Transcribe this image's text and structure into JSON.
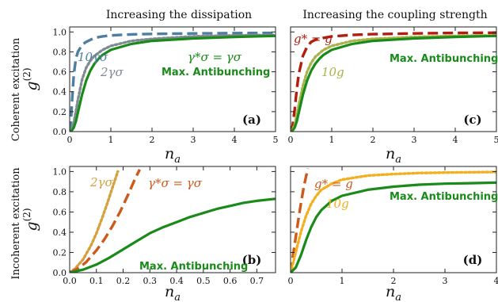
{
  "column_titles": [
    "Increasing the dissipation",
    "Increasing the coupling strength"
  ],
  "row_titles": [
    "Coherent excitation",
    "Incoherent excitation"
  ],
  "chart_data": [
    {
      "id": "a",
      "type": "line",
      "panel_label": "(a)",
      "xlabel": "n_a",
      "ylabel": "g^(2)",
      "xlim": [
        0,
        5
      ],
      "ylim": [
        0,
        1.05
      ],
      "xticks": [
        0,
        1,
        2,
        3,
        4,
        5
      ],
      "xtick_labels": [
        "0",
        "1",
        "2",
        "3",
        "4",
        "5"
      ],
      "yticks": [
        0,
        0.2,
        0.4,
        0.6,
        0.8,
        1.0
      ],
      "ytick_labels": [
        "0.0",
        "0.2",
        "0.4",
        "0.6",
        "0.8",
        "1.0"
      ],
      "series": [
        {
          "name": "10γσ",
          "color": "#4f7fa0",
          "dash": "long",
          "x": [
            0,
            0.03,
            0.06,
            0.1,
            0.15,
            0.2,
            0.3,
            0.4,
            0.6,
            0.8,
            1,
            1.5,
            2,
            3,
            4,
            5
          ],
          "y": [
            0,
            0.1,
            0.32,
            0.57,
            0.73,
            0.8,
            0.87,
            0.9,
            0.94,
            0.955,
            0.965,
            0.975,
            0.98,
            0.985,
            0.988,
            0.99
          ]
        },
        {
          "name": "2γσ",
          "color": "#7f8b91",
          "dash": "dot",
          "x": [
            0,
            0.05,
            0.1,
            0.15,
            0.2,
            0.3,
            0.4,
            0.5,
            0.6,
            0.8,
            1,
            1.5,
            2,
            3,
            4,
            5
          ],
          "y": [
            0,
            0.03,
            0.09,
            0.2,
            0.32,
            0.52,
            0.64,
            0.71,
            0.76,
            0.82,
            0.86,
            0.91,
            0.93,
            0.955,
            0.965,
            0.97
          ]
        },
        {
          "name": "Max. Antibunching",
          "color": "#1a8a1a",
          "dash": "solid",
          "x": [
            0,
            0.05,
            0.1,
            0.15,
            0.2,
            0.3,
            0.4,
            0.5,
            0.6,
            0.7,
            0.8,
            1,
            1.5,
            2,
            3,
            4,
            5
          ],
          "y": [
            0,
            0.01,
            0.04,
            0.1,
            0.19,
            0.37,
            0.51,
            0.61,
            0.68,
            0.73,
            0.77,
            0.82,
            0.88,
            0.91,
            0.935,
            0.95,
            0.96
          ]
        }
      ],
      "annotations": [
        {
          "text": "10γσ",
          "color": "#4f7fa0"
        },
        {
          "text": "2γσ",
          "color": "#7f8b91"
        },
        {
          "text": "γ*σ = γσ",
          "color": "#1a8a1a"
        },
        {
          "text": "Max. Antibunching",
          "color": "#1a8a1a"
        }
      ]
    },
    {
      "id": "c",
      "type": "line",
      "panel_label": "(c)",
      "xlabel": "n_a",
      "ylabel": "",
      "xlim": [
        0,
        5
      ],
      "ylim": [
        0,
        1.05
      ],
      "xticks": [
        0,
        1,
        2,
        3,
        4,
        5
      ],
      "xtick_labels": [
        "0",
        "1",
        "2",
        "3",
        "4",
        "5"
      ],
      "yticks": [
        0,
        0.2,
        0.4,
        0.6,
        0.8,
        1.0
      ],
      "ytick_labels": [
        "",
        "",
        "",
        "",
        "",
        ""
      ],
      "series": [
        {
          "name": "g* = g",
          "color": "#b01e10",
          "dash": "long",
          "x": [
            0,
            0.05,
            0.1,
            0.15,
            0.2,
            0.3,
            0.4,
            0.5,
            0.6,
            0.8,
            1,
            1.5,
            2,
            3,
            4,
            5
          ],
          "y": [
            0,
            0.06,
            0.22,
            0.42,
            0.58,
            0.76,
            0.85,
            0.9,
            0.92,
            0.94,
            0.955,
            0.97,
            0.978,
            0.985,
            0.99,
            0.992
          ]
        },
        {
          "name": "10g",
          "color": "#a8b34a",
          "dash": "dot",
          "x": [
            0,
            0.05,
            0.1,
            0.15,
            0.2,
            0.3,
            0.4,
            0.5,
            0.6,
            0.8,
            1,
            1.5,
            2,
            3,
            4,
            5
          ],
          "y": [
            0,
            0.02,
            0.07,
            0.16,
            0.27,
            0.46,
            0.6,
            0.69,
            0.75,
            0.82,
            0.86,
            0.91,
            0.93,
            0.95,
            0.96,
            0.965
          ]
        },
        {
          "name": "Max. Antibunching",
          "color": "#1a8a1a",
          "dash": "solid",
          "x": [
            0,
            0.05,
            0.1,
            0.15,
            0.2,
            0.3,
            0.4,
            0.5,
            0.6,
            0.7,
            0.8,
            1,
            1.5,
            2,
            3,
            4,
            5
          ],
          "y": [
            0,
            0.01,
            0.04,
            0.1,
            0.19,
            0.37,
            0.51,
            0.61,
            0.68,
            0.73,
            0.77,
            0.82,
            0.88,
            0.91,
            0.935,
            0.95,
            0.96
          ]
        }
      ],
      "annotations": [
        {
          "text": "g* = g",
          "color": "#b01e10"
        },
        {
          "text": "10g",
          "color": "#a8b34a"
        },
        {
          "text": "Max. Antibunching",
          "color": "#1a8a1a"
        }
      ]
    },
    {
      "id": "b",
      "type": "line",
      "panel_label": "(b)",
      "xlabel": "n_a",
      "ylabel": "g^(2)",
      "xlim": [
        0,
        0.77
      ],
      "ylim": [
        0,
        1.05
      ],
      "xticks": [
        0,
        0.1,
        0.2,
        0.3,
        0.4,
        0.5,
        0.6,
        0.7
      ],
      "xtick_labels": [
        "0.0",
        "0.1",
        "0.2",
        "0.3",
        "0.4",
        "0.5",
        "0.6",
        "0.7"
      ],
      "yticks": [
        0,
        0.2,
        0.4,
        0.6,
        0.8,
        1.0
      ],
      "ytick_labels": [
        "0.0",
        "0.2",
        "0.4",
        "0.6",
        "0.8",
        "1.0"
      ],
      "series": [
        {
          "name": "2γσ",
          "color": "#d4a040",
          "dash": "dot",
          "x": [
            0,
            0.02,
            0.05,
            0.08,
            0.1,
            0.12,
            0.14,
            0.16,
            0.18
          ],
          "y": [
            0,
            0.04,
            0.13,
            0.27,
            0.39,
            0.53,
            0.68,
            0.84,
            1.0
          ]
        },
        {
          "name": "γ*σ = γσ",
          "color": "#cc5a1c",
          "dash": "long",
          "x": [
            0,
            0.03,
            0.06,
            0.1,
            0.13,
            0.16,
            0.19,
            0.22,
            0.245,
            0.262
          ],
          "y": [
            0,
            0.04,
            0.1,
            0.22,
            0.33,
            0.46,
            0.61,
            0.78,
            0.93,
            1.02
          ]
        },
        {
          "name": "Max. Antibunching",
          "color": "#1a8a1a",
          "dash": "solid",
          "x": [
            0,
            0.05,
            0.1,
            0.15,
            0.2,
            0.25,
            0.3,
            0.35,
            0.4,
            0.45,
            0.5,
            0.55,
            0.6,
            0.65,
            0.7,
            0.77
          ],
          "y": [
            0,
            0.03,
            0.08,
            0.15,
            0.23,
            0.31,
            0.39,
            0.45,
            0.5,
            0.55,
            0.59,
            0.63,
            0.66,
            0.69,
            0.71,
            0.73
          ]
        }
      ],
      "annotations": [
        {
          "text": "2γσ",
          "color": "#d4a040"
        },
        {
          "text": "γ*σ = γσ",
          "color": "#cc5a1c"
        },
        {
          "text": "Max. Antibunching",
          "color": "#1a8a1a"
        }
      ]
    },
    {
      "id": "d",
      "type": "line",
      "panel_label": "(d)",
      "xlabel": "n_a",
      "ylabel": "",
      "xlim": [
        0,
        4
      ],
      "ylim": [
        0,
        1.05
      ],
      "xticks": [
        0,
        1,
        2,
        3,
        4
      ],
      "xtick_labels": [
        "0",
        "1",
        "2",
        "3",
        "4"
      ],
      "yticks": [
        0,
        0.2,
        0.4,
        0.6,
        0.8,
        1.0
      ],
      "ytick_labels": [
        "",
        "",
        "",
        "",
        "",
        ""
      ],
      "series": [
        {
          "name": "g* = g",
          "color": "#cc5a1c",
          "dash": "long",
          "x": [
            0,
            0.05,
            0.1,
            0.15,
            0.2,
            0.25,
            0.3,
            0.34
          ],
          "y": [
            0,
            0.18,
            0.35,
            0.52,
            0.68,
            0.83,
            0.95,
            1.03
          ]
        },
        {
          "name": "10g",
          "color": "#f2b01e",
          "dash": "dot",
          "x": [
            0,
            0.1,
            0.2,
            0.3,
            0.4,
            0.5,
            0.6,
            0.8,
            1,
            1.5,
            2,
            2.5,
            3,
            3.5,
            4
          ],
          "y": [
            0,
            0.2,
            0.4,
            0.56,
            0.68,
            0.76,
            0.82,
            0.88,
            0.92,
            0.96,
            0.975,
            0.985,
            0.99,
            0.993,
            0.995
          ]
        },
        {
          "name": "Max. Antibunching",
          "color": "#1a8a1a",
          "dash": "solid",
          "x": [
            0,
            0.1,
            0.2,
            0.3,
            0.4,
            0.5,
            0.6,
            0.8,
            1,
            1.5,
            2,
            2.5,
            3,
            3.5,
            4
          ],
          "y": [
            0,
            0.05,
            0.17,
            0.32,
            0.45,
            0.55,
            0.62,
            0.71,
            0.76,
            0.82,
            0.85,
            0.87,
            0.88,
            0.885,
            0.89
          ]
        }
      ],
      "annotations": [
        {
          "text": "g* = g",
          "color": "#cc5a1c"
        },
        {
          "text": "10g",
          "color": "#f2b01e"
        },
        {
          "text": "Max. Antibunching",
          "color": "#1a8a1a"
        }
      ]
    }
  ]
}
